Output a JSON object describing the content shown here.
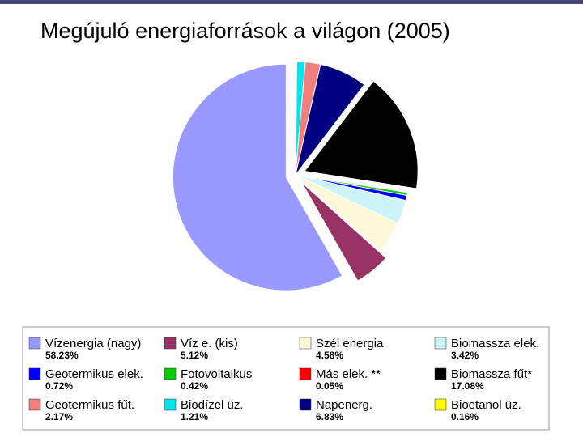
{
  "chart_data": {
    "type": "pie",
    "title": "Megújuló energiaforrások a világon (2005)",
    "categories": [
      "Bioetanol üz.",
      "Biodízel üz.",
      "Geotermikus fűt.",
      "Napenerg.",
      "Biomassza fűt*",
      "Más elek. **",
      "Fotovoltaikus",
      "Geotermikus elek.",
      "Biomassza elek.",
      "Szél energia",
      "Víz e. (kis)",
      "Vízenergia (nagy)"
    ],
    "values": [
      0.16,
      1.21,
      2.17,
      6.83,
      17.08,
      0.05,
      0.42,
      0.72,
      3.42,
      4.58,
      5.12,
      58.23
    ],
    "value_labels": [
      "0.16%",
      "1.21%",
      "2.17%",
      "6.83%",
      "17.08%",
      "0.05%",
      "0.42%",
      "0.72%",
      "3.42%",
      "4.58%",
      "5.12%",
      "58.23%"
    ],
    "colors": [
      "#ffff00",
      "#00e5ee",
      "#f08080",
      "#000080",
      "#000000",
      "#ff0000",
      "#00cc00",
      "#0000ff",
      "#ccf5fa",
      "#fff8d8",
      "#993366",
      "#9999ff"
    ],
    "exploded": [
      false,
      false,
      false,
      false,
      true,
      false,
      false,
      false,
      false,
      false,
      true,
      true
    ]
  }
}
